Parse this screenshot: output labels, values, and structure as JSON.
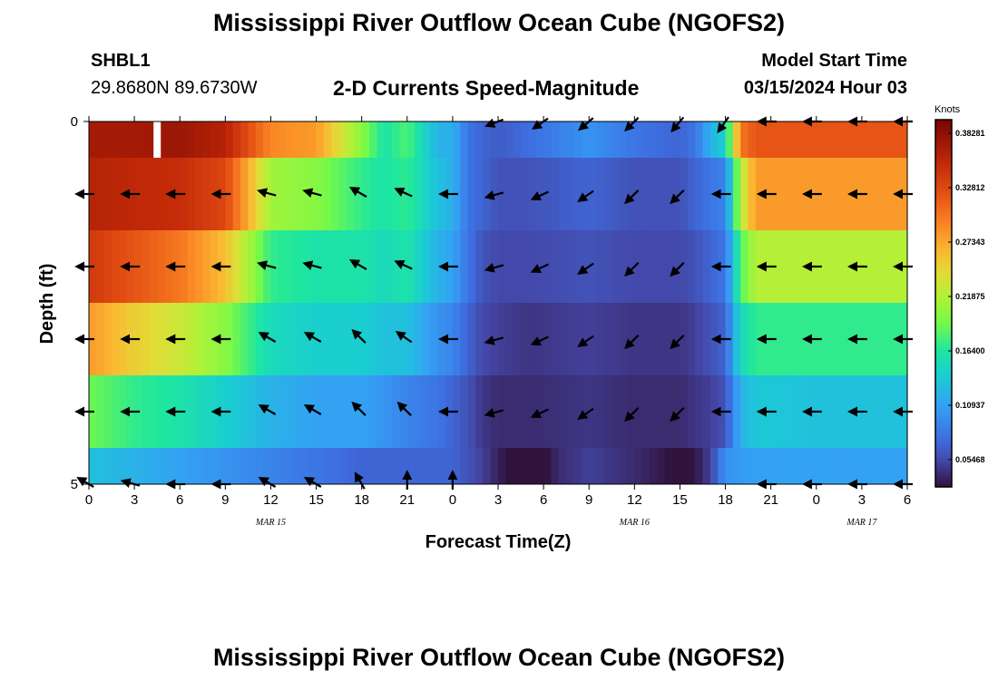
{
  "header": {
    "title": "Mississippi River Outflow Ocean Cube (NGOFS2)",
    "station": "SHBL1",
    "coords": "29.8680N  89.6730W",
    "subtitle": "2-D Currents Speed-Magnitude",
    "model_start_label": "Model Start Time",
    "model_start_value": "03/15/2024 Hour 03"
  },
  "footer": {
    "title": "Mississippi River Outflow Ocean Cube (NGOFS2)"
  },
  "chart_data": {
    "type": "heatmap",
    "xlabel": "Forecast Time(Z)",
    "ylabel": "Depth (ft)",
    "x_range_hours": [
      0,
      54
    ],
    "y_range": [
      0,
      5
    ],
    "x_tick_labels": [
      "0",
      "3",
      "6",
      "9",
      "12",
      "15",
      "18",
      "21",
      "0",
      "3",
      "6",
      "9",
      "12",
      "15",
      "18",
      "21",
      "0",
      "3",
      "6"
    ],
    "y_tick_labels": [
      "0",
      "5"
    ],
    "date_labels": [
      {
        "label": "MAR 15",
        "hour": 12
      },
      {
        "label": "MAR 16",
        "hour": 36
      },
      {
        "label": "MAR 17",
        "hour": 51
      }
    ],
    "colorbar": {
      "unit": "Knots",
      "min": 0.0273,
      "max": 0.3965,
      "tick_values": [
        0.05468,
        0.10937,
        0.164,
        0.21875,
        0.27343,
        0.32812,
        0.38281
      ],
      "tick_labels": [
        "0.05468",
        "0.10937",
        "0.16400",
        "0.21875",
        "0.27343",
        "0.32812",
        "0.38281"
      ]
    },
    "speed_profiles": {
      "hours": [
        0,
        3,
        6,
        9,
        12,
        15,
        18,
        19.5,
        21,
        23,
        24,
        25,
        26,
        27,
        29,
        33,
        36,
        39,
        40,
        41,
        42,
        43,
        44,
        45,
        48,
        50,
        51,
        52,
        54
      ],
      "layers": [
        [
          0.37,
          0.37,
          0.375,
          0.36,
          0.29,
          0.28,
          0.2,
          0.16,
          0.18,
          0.12,
          0.12,
          0.08,
          0.07,
          0.065,
          0.075,
          0.1,
          0.08,
          0.07,
          0.08,
          0.12,
          0.14,
          0.3,
          0.32,
          0.32,
          0.32,
          0.32,
          0.32,
          0.32,
          0.32
        ],
        [
          0.36,
          0.355,
          0.35,
          0.33,
          0.21,
          0.2,
          0.17,
          0.16,
          0.17,
          0.13,
          0.12,
          0.08,
          0.07,
          0.06,
          0.06,
          0.07,
          0.06,
          0.06,
          0.07,
          0.08,
          0.09,
          0.22,
          0.28,
          0.28,
          0.28,
          0.28,
          0.28,
          0.28,
          0.28
        ],
        [
          0.34,
          0.32,
          0.3,
          0.26,
          0.17,
          0.16,
          0.16,
          0.15,
          0.16,
          0.12,
          0.11,
          0.08,
          0.06,
          0.055,
          0.055,
          0.06,
          0.055,
          0.055,
          0.06,
          0.07,
          0.08,
          0.18,
          0.22,
          0.22,
          0.22,
          0.22,
          0.22,
          0.22,
          0.22
        ],
        [
          0.28,
          0.25,
          0.23,
          0.2,
          0.15,
          0.14,
          0.14,
          0.13,
          0.13,
          0.1,
          0.09,
          0.07,
          0.055,
          0.05,
          0.045,
          0.05,
          0.045,
          0.045,
          0.05,
          0.06,
          0.07,
          0.15,
          0.17,
          0.17,
          0.17,
          0.17,
          0.17,
          0.17,
          0.17
        ],
        [
          0.19,
          0.17,
          0.16,
          0.14,
          0.12,
          0.11,
          0.11,
          0.1,
          0.09,
          0.08,
          0.07,
          0.06,
          0.045,
          0.04,
          0.04,
          0.045,
          0.04,
          0.04,
          0.045,
          0.05,
          0.06,
          0.12,
          0.135,
          0.135,
          0.13,
          0.13,
          0.13,
          0.13,
          0.13
        ]
      ],
      "bottom_layer": {
        "hours": [
          0,
          3,
          6,
          9,
          12,
          15,
          18,
          21,
          24,
          26,
          27,
          28,
          28.6,
          29.4,
          30,
          31,
          33,
          36,
          38,
          39,
          40,
          41,
          42,
          44,
          48,
          51,
          54
        ],
        "values": [
          0.13,
          0.12,
          0.11,
          0.1,
          0.09,
          0.08,
          0.07,
          0.07,
          0.07,
          0.05,
          0.035,
          0.025,
          0.002,
          0.002,
          0.025,
          0.04,
          0.05,
          0.04,
          0.03,
          0.025,
          0.03,
          0.05,
          0.1,
          0.11,
          0.11,
          0.11,
          0.11
        ]
      },
      "max_hour": 4.5
    },
    "vectors": {
      "hours": [
        0,
        3,
        6,
        9,
        12,
        15,
        18,
        21,
        24,
        27,
        30,
        33,
        36,
        39,
        42,
        45,
        48,
        51,
        54
      ],
      "layer_depth_rows": [
        0,
        1,
        2,
        3,
        4,
        5
      ],
      "angles_deg": [
        [
          null,
          null,
          null,
          null,
          null,
          null,
          null,
          null,
          null,
          200,
          215,
          220,
          225,
          230,
          235,
          180,
          180,
          180,
          180
        ],
        [
          180,
          180,
          180,
          180,
          165,
          165,
          150,
          155,
          180,
          195,
          205,
          215,
          225,
          225,
          180,
          180,
          180,
          180,
          180
        ],
        [
          180,
          180,
          180,
          180,
          165,
          165,
          150,
          155,
          180,
          195,
          205,
          215,
          225,
          225,
          180,
          180,
          180,
          180,
          180
        ],
        [
          180,
          180,
          180,
          180,
          150,
          150,
          135,
          145,
          180,
          195,
          205,
          215,
          225,
          225,
          180,
          180,
          180,
          180,
          180
        ],
        [
          180,
          180,
          180,
          180,
          150,
          150,
          135,
          135,
          180,
          195,
          205,
          215,
          225,
          225,
          180,
          180,
          180,
          180,
          180
        ],
        [
          150,
          165,
          180,
          180,
          150,
          150,
          120,
          90,
          90,
          null,
          null,
          null,
          null,
          null,
          null,
          180,
          180,
          180,
          180
        ]
      ]
    }
  }
}
